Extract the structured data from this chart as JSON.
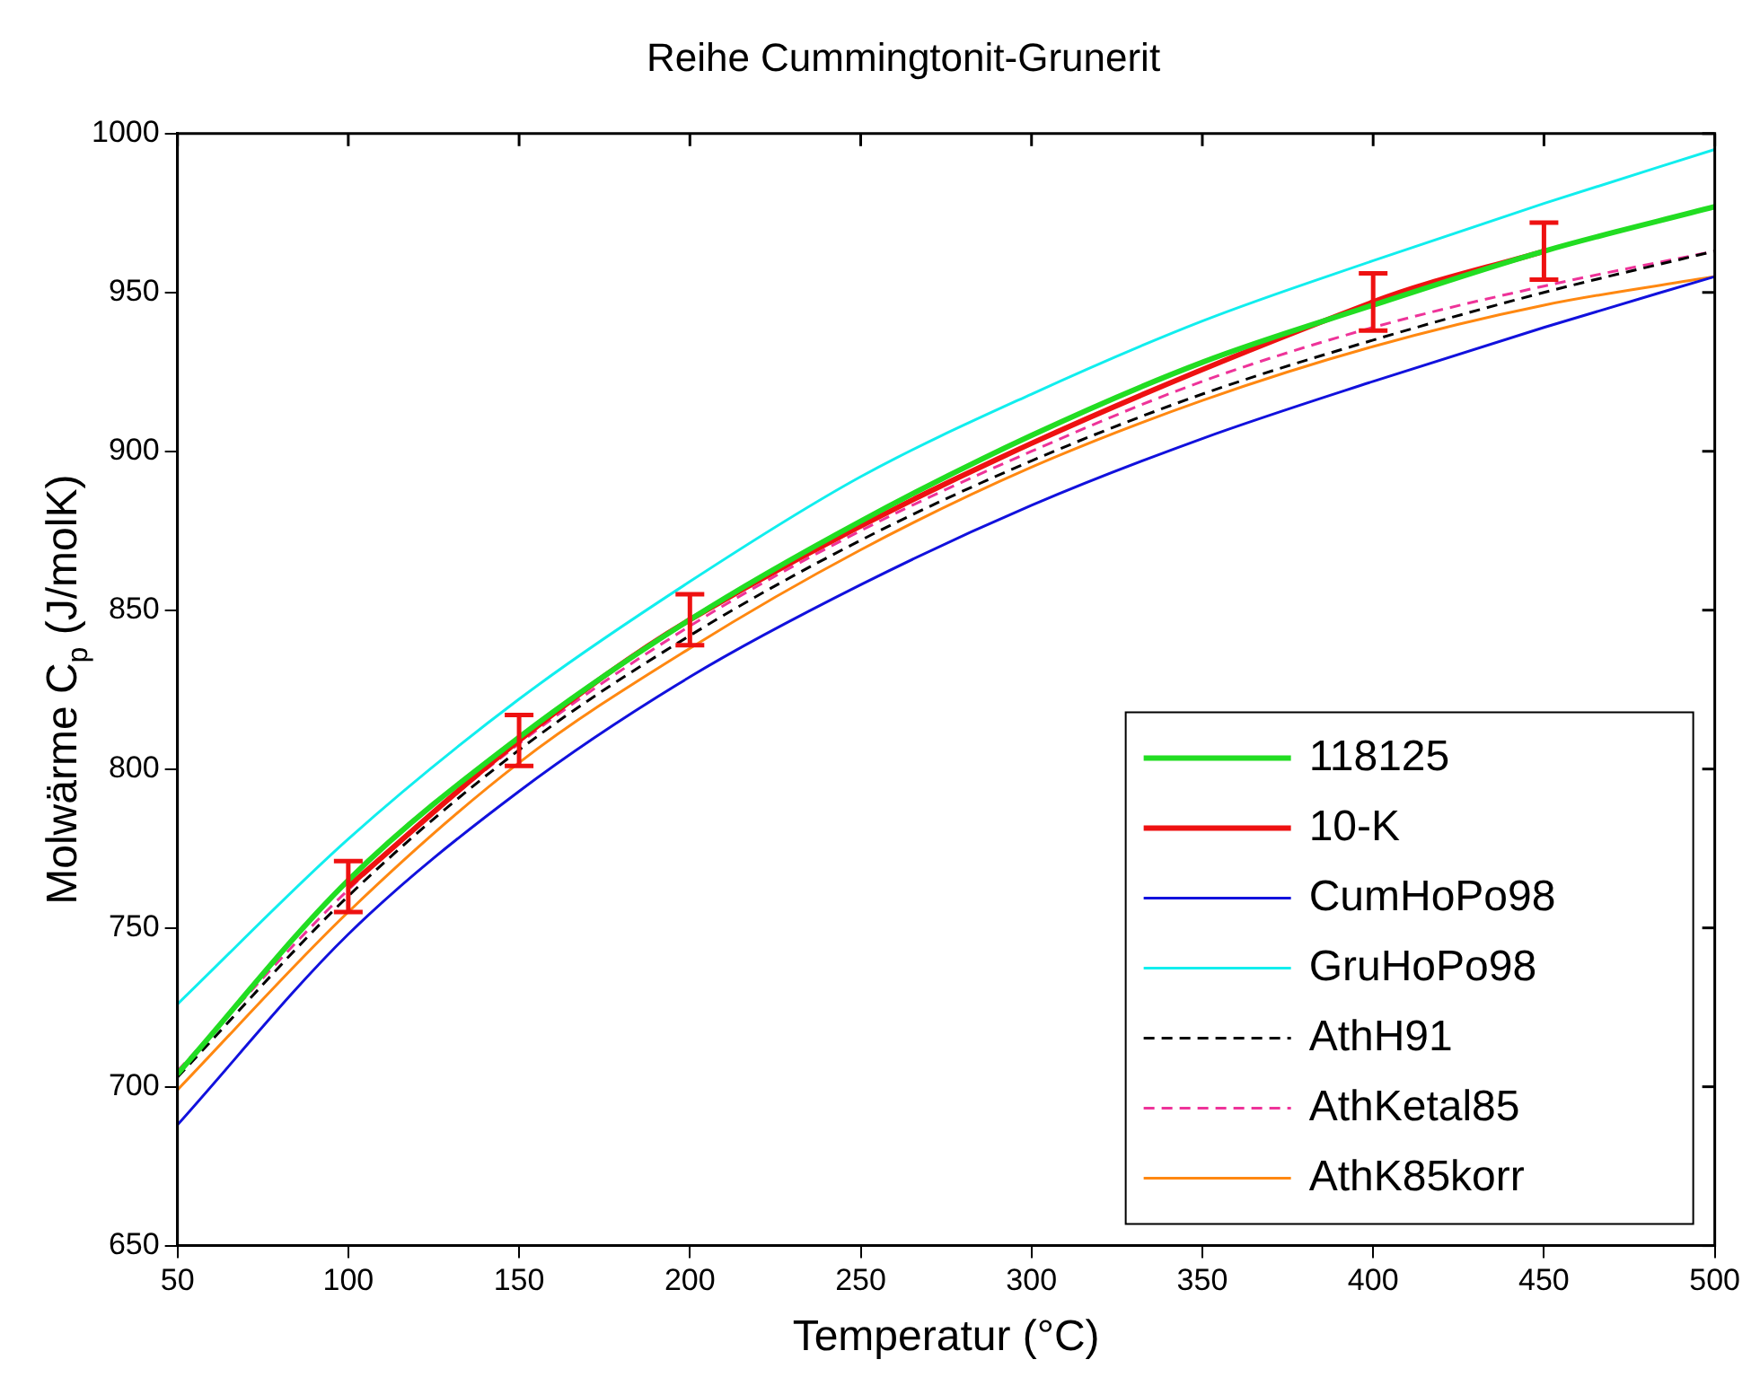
{
  "chart_data": {
    "type": "line",
    "title": "Reihe Cummingtonit-Grunerit",
    "xlabel": "Temperatur (°C)",
    "ylabel": "Molwärme C$_{p}$ (J/molK)",
    "x": [
      50,
      100,
      150,
      200,
      250,
      300,
      350,
      400,
      450,
      500
    ],
    "xlim": [
      50,
      500
    ],
    "xticks": [
      50,
      100,
      150,
      200,
      250,
      300,
      350,
      400,
      450,
      500
    ],
    "ylim": [
      650,
      1000
    ],
    "yticks": [
      650,
      700,
      750,
      800,
      850,
      900,
      950,
      1000
    ],
    "grid": false,
    "legend": "bottom right",
    "marker": "none",
    "series": [
      {
        "name": "118125",
        "color": "#22dd22",
        "line_style": "solid",
        "values": [
          704,
          765,
          810,
          847,
          878,
          905,
          928,
          946,
          963,
          977
        ]
      },
      {
        "name": "10-K",
        "color": "#ee1111",
        "line_style": "solid",
        "x": [
          100,
          150,
          200,
          400,
          450
        ],
        "values": [
          763,
          809,
          847,
          947,
          963
        ],
        "errors": [
          8,
          8,
          8,
          9,
          9
        ]
      },
      {
        "name": "CumHoPo98",
        "color": "#1111dd",
        "line_style": "solid",
        "values": [
          688,
          748,
          793,
          829,
          858,
          883,
          904,
          922,
          939,
          955
        ]
      },
      {
        "name": "GruHoPo98",
        "color": "#11eeee",
        "line_style": "solid",
        "values": [
          726,
          778,
          822,
          859,
          892,
          918,
          941,
          960,
          978,
          995
        ]
      },
      {
        "name": "AthH91",
        "color": "#000000",
        "line_style": "dashed",
        "values": [
          703,
          760,
          806,
          842,
          872,
          897,
          918,
          935,
          950,
          963
        ]
      },
      {
        "name": "AthKetal85",
        "color": "#ee3399",
        "line_style": "dashed",
        "values": [
          705,
          762,
          808,
          845,
          875,
          900,
          922,
          939,
          952,
          963
        ]
      },
      {
        "name": "AthK85korr",
        "color": "#ff8811",
        "line_style": "solid",
        "values": [
          699,
          755,
          802,
          838,
          869,
          895,
          916,
          933,
          946,
          955
        ]
      }
    ]
  }
}
